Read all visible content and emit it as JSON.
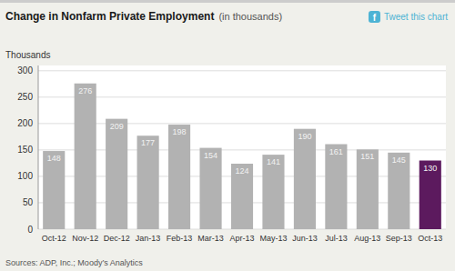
{
  "chart_data": {
    "type": "bar",
    "title": "Change in Nonfarm Private Employment",
    "subtitle": "(in thousands)",
    "ylabel": "Thousands",
    "categories": [
      "Oct-12",
      "Nov-12",
      "Dec-12",
      "Jan-13",
      "Feb-13",
      "Mar-13",
      "Apr-13",
      "May-13",
      "Jun-13",
      "Jul-13",
      "Aug-13",
      "Sep-13",
      "Oct-13"
    ],
    "values": [
      148,
      276,
      209,
      177,
      198,
      154,
      124,
      141,
      190,
      161,
      151,
      145,
      130
    ],
    "colors": [
      "#b2b2b2",
      "#b2b2b2",
      "#b2b2b2",
      "#b2b2b2",
      "#b2b2b2",
      "#b2b2b2",
      "#b2b2b2",
      "#b2b2b2",
      "#b2b2b2",
      "#b2b2b2",
      "#b2b2b2",
      "#b2b2b2",
      "#5c1a5e"
    ],
    "ylim": [
      0,
      310
    ],
    "yticks": [
      0,
      50,
      100,
      150,
      200,
      250,
      300
    ],
    "grid": true,
    "data_labels": true,
    "annotations": [
      "f",
      "Tweet this chart",
      "Sources: ADP, Inc.; Moody’s Analytics"
    ]
  }
}
